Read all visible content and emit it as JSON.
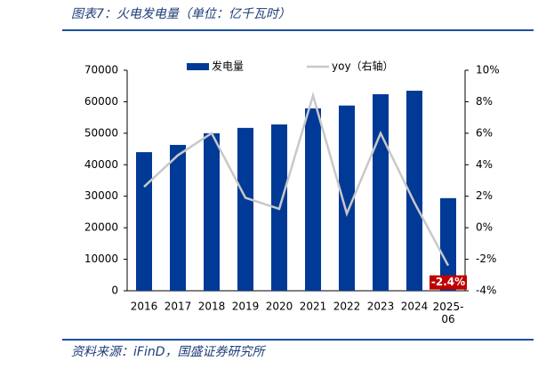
{
  "header": {
    "title": "图表7：火电发电量（单位：亿千瓦时）"
  },
  "chart_data": {
    "type": "bar-line",
    "categories": [
      "2016",
      "2017",
      "2018",
      "2019",
      "2020",
      "2021",
      "2022",
      "2023",
      "2024",
      "2025-06"
    ],
    "series": [
      {
        "name": "发电量",
        "type": "bar",
        "color": "#003a96",
        "values": [
          44000,
          46300,
          50000,
          51700,
          52800,
          57900,
          58800,
          62400,
          63500,
          29400
        ]
      },
      {
        "name": "yoy（右轴）",
        "type": "line",
        "axis": "y2",
        "color": "#c8c8c8",
        "values": [
          2.6,
          4.6,
          6.0,
          1.9,
          1.2,
          8.4,
          0.9,
          6.0,
          1.6,
          -2.4
        ],
        "value_labels": [
          null,
          null,
          null,
          null,
          null,
          null,
          null,
          null,
          null,
          "-2.4%"
        ]
      }
    ],
    "ylim": [
      0,
      70000
    ],
    "yticks": [
      0,
      10000,
      20000,
      30000,
      40000,
      50000,
      60000,
      70000
    ],
    "y2lim": [
      -4,
      10
    ],
    "y2ticks": [
      {
        "value": -4,
        "label": "-4%"
      },
      {
        "value": -2,
        "label": "-2%"
      },
      {
        "value": 0,
        "label": "0%"
      },
      {
        "value": 2,
        "label": "2%"
      },
      {
        "value": 4,
        "label": "4%"
      },
      {
        "value": 6,
        "label": "6%"
      },
      {
        "value": 8,
        "label": "8%"
      },
      {
        "value": 10,
        "label": "10%"
      }
    ],
    "grid": false,
    "legend": "top"
  },
  "footer": {
    "source": "资料来源：iFinD，国盛证券研究所"
  }
}
